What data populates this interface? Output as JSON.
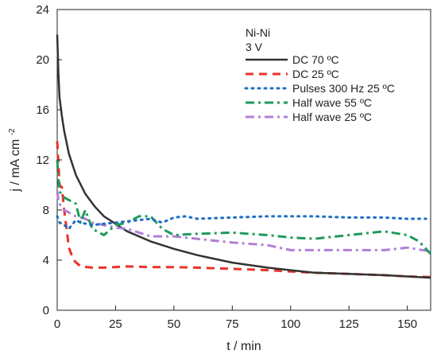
{
  "chart_data": {
    "type": "line",
    "title": "",
    "xlabel": "t / min",
    "ylabel_main": "j / mA cm",
    "ylabel_sup": "-2",
    "xlim": [
      0,
      160
    ],
    "ylim": [
      0,
      24
    ],
    "xticks": [
      0,
      25,
      50,
      75,
      100,
      125,
      150
    ],
    "yticks": [
      0,
      4,
      8,
      12,
      16,
      20,
      24
    ],
    "legend_header": [
      "Ni-Ni",
      "3 V"
    ],
    "legend_position": "top-right",
    "grid": false,
    "series": [
      {
        "name": "DC 70 ºC",
        "color": "#333333",
        "dash": "solid",
        "x": [
          0,
          0.5,
          1,
          2,
          3,
          5,
          8,
          12,
          16,
          20,
          25,
          30,
          40,
          50,
          60,
          75,
          90,
          100,
          110,
          125,
          140,
          150,
          160
        ],
        "y": [
          22,
          19,
          17,
          15.5,
          14.3,
          12.5,
          10.8,
          9.3,
          8.3,
          7.5,
          6.9,
          6.3,
          5.5,
          4.9,
          4.4,
          3.8,
          3.4,
          3.2,
          3.0,
          2.9,
          2.8,
          2.7,
          2.6
        ]
      },
      {
        "name": "DC 25 ºC",
        "color": "#e8332a",
        "dash": "dash",
        "x": [
          0,
          1,
          2,
          3,
          4,
          5,
          7,
          10,
          15,
          20,
          25,
          30,
          40,
          50,
          60,
          75,
          90,
          100,
          110,
          125,
          140,
          150,
          160
        ],
        "y": [
          13.5,
          10,
          9.8,
          8,
          6.5,
          5,
          4,
          3.5,
          3.4,
          3.4,
          3.45,
          3.5,
          3.45,
          3.45,
          3.4,
          3.3,
          3.2,
          3.1,
          3.0,
          2.9,
          2.8,
          2.7,
          2.65
        ]
      },
      {
        "name": "Pulses 300 Hz 25 ºC",
        "color": "#1f6fc2",
        "dash": "dot",
        "x": [
          0,
          1,
          3,
          5,
          8,
          10,
          15,
          20,
          25,
          30,
          35,
          40,
          45,
          50,
          55,
          60,
          75,
          90,
          100,
          110,
          125,
          140,
          150,
          158
        ],
        "y": [
          7.5,
          7,
          6.8,
          6.5,
          7.2,
          7.0,
          6.8,
          6.9,
          7.0,
          7.1,
          7.2,
          7.3,
          7.0,
          7.4,
          7.5,
          7.3,
          7.4,
          7.5,
          7.5,
          7.5,
          7.4,
          7.4,
          7.3,
          7.3
        ]
      },
      {
        "name": "Half wave 55 ºC",
        "color": "#1f9a5c",
        "dash": "dashdot",
        "x": [
          0,
          0.5,
          1,
          2,
          3,
          5,
          8,
          10,
          12,
          15,
          20,
          25,
          30,
          35,
          40,
          45,
          50,
          60,
          75,
          90,
          100,
          110,
          125,
          140,
          150,
          155,
          160
        ],
        "y": [
          12,
          10.5,
          9.5,
          9.2,
          9.0,
          8.8,
          8.5,
          7.0,
          8.0,
          6.5,
          6.0,
          6.8,
          7.0,
          7.5,
          7.5,
          6.5,
          6.0,
          6.1,
          6.2,
          6.0,
          5.8,
          5.7,
          6.0,
          6.3,
          6.0,
          5.5,
          4.5
        ]
      },
      {
        "name": "Half wave 25 ºC",
        "color": "#b07fd8",
        "dash": "dashdot",
        "x": [
          0,
          0.5,
          1,
          2,
          3,
          5,
          8,
          12,
          15,
          20,
          25,
          30,
          40,
          50,
          60,
          75,
          90,
          100,
          110,
          125,
          140,
          150,
          160
        ],
        "y": [
          9.5,
          8.8,
          8.5,
          8.2,
          8.0,
          7.8,
          7.5,
          7.3,
          7.0,
          6.8,
          6.6,
          6.5,
          5.9,
          5.9,
          5.7,
          5.4,
          5.2,
          4.8,
          4.8,
          4.8,
          4.8,
          5.0,
          4.7
        ]
      }
    ]
  }
}
